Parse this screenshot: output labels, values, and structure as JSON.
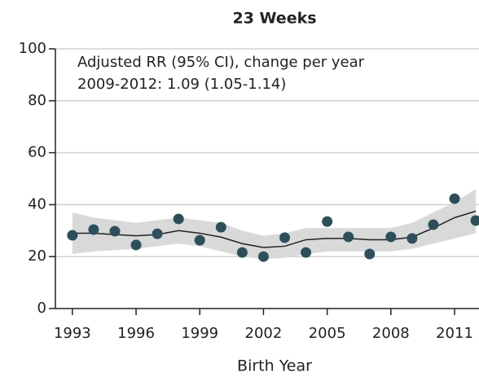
{
  "chart_data": {
    "type": "scatter",
    "title": "23 Weeks",
    "annotation": [
      "Adjusted RR (95% CI), change per year",
      "2009-2012: 1.09 (1.05-1.14)"
    ],
    "xlabel": "Birth Year",
    "x": [
      1993,
      1994,
      1995,
      1996,
      1997,
      1998,
      1999,
      2000,
      2001,
      2002,
      2003,
      2004,
      2005,
      2006,
      2007,
      2008,
      2009,
      2010,
      2011,
      2012
    ],
    "values": [
      28.2,
      30.4,
      29.8,
      24.5,
      28.8,
      34.5,
      26.3,
      31.3,
      21.6,
      20,
      27.3,
      21.6,
      33.5,
      27.6,
      21,
      27.6,
      27,
      32.3,
      42.3,
      33.9
    ],
    "color": "#2e4f5a",
    "trend": {
      "color": "#222222",
      "values": [
        29,
        29,
        28.5,
        28,
        28.5,
        30,
        29,
        27.5,
        25,
        23.5,
        24,
        26.5,
        27,
        27,
        26.5,
        26.5,
        27.5,
        31,
        35,
        37.5
      ]
    },
    "band": {
      "color": "#d9d9d9",
      "lower": [
        21,
        22,
        22.5,
        23,
        24,
        25,
        24,
        22,
        20,
        19,
        19.5,
        21,
        22,
        22,
        22,
        22,
        23,
        25,
        27,
        29
      ],
      "upper": [
        37,
        35,
        34,
        33,
        34,
        35,
        34,
        33,
        30,
        28,
        29,
        31,
        31,
        31,
        31,
        31,
        33,
        37,
        41,
        46
      ]
    },
    "xlim": [
      1992.2,
      2012.15
    ],
    "xticks": [
      1993,
      1996,
      1999,
      2002,
      2005,
      2008,
      2011
    ],
    "ylim": [
      0,
      100
    ],
    "yticks": [
      0,
      20,
      40,
      60,
      80,
      100
    ],
    "grid": true
  }
}
